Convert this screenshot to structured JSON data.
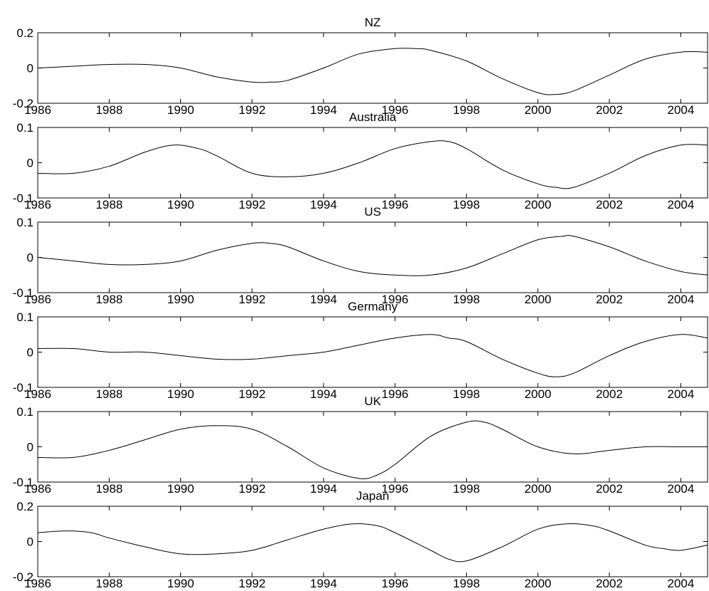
{
  "chart_data": [
    {
      "type": "line",
      "title": "NZ",
      "xlim": [
        1986,
        2004.75
      ],
      "ylim": [
        -0.2,
        0.2
      ],
      "x_ticks": [
        "1986",
        "1988",
        "1990",
        "1992",
        "1994",
        "1996",
        "1998",
        "2000",
        "2002",
        "2004"
      ],
      "y_ticks": [
        "0.2",
        "0",
        "-0.2"
      ],
      "series": [
        {
          "x": [
            1986,
            1987,
            1988,
            1989,
            1990,
            1991,
            1992,
            1992.5,
            1993,
            1994,
            1995,
            1996,
            1996.6,
            1997,
            1998,
            1999,
            2000,
            2000.5,
            2001,
            2002,
            2003,
            2004,
            2004.75
          ],
          "y": [
            0.0,
            0.01,
            0.02,
            0.02,
            0.0,
            -0.05,
            -0.08,
            -0.08,
            -0.07,
            0.0,
            0.08,
            0.11,
            0.11,
            0.1,
            0.04,
            -0.06,
            -0.14,
            -0.15,
            -0.13,
            -0.04,
            0.05,
            0.09,
            0.09
          ]
        }
      ]
    },
    {
      "type": "line",
      "title": "Australia",
      "xlim": [
        1986,
        2004.75
      ],
      "ylim": [
        -0.1,
        0.1
      ],
      "x_ticks": [
        "1986",
        "1988",
        "1990",
        "1992",
        "1994",
        "1996",
        "1998",
        "2000",
        "2002",
        "2004"
      ],
      "y_ticks": [
        "0.1",
        "0",
        "-0.1"
      ],
      "series": [
        {
          "x": [
            1986,
            1987,
            1988,
            1989,
            1989.8,
            1990.5,
            1991,
            1992,
            1993,
            1994,
            1995,
            1996,
            1997,
            1997.5,
            1998,
            1999,
            2000,
            2000.5,
            2001,
            2002,
            2003,
            2004,
            2004.75
          ],
          "y": [
            -0.03,
            -0.03,
            -0.01,
            0.03,
            0.05,
            0.04,
            0.02,
            -0.03,
            -0.04,
            -0.03,
            0.0,
            0.04,
            0.06,
            0.06,
            0.04,
            -0.02,
            -0.06,
            -0.07,
            -0.07,
            -0.03,
            0.02,
            0.05,
            0.05
          ]
        }
      ]
    },
    {
      "type": "line",
      "title": "US",
      "xlim": [
        1986,
        2004.75
      ],
      "ylim": [
        -0.1,
        0.1
      ],
      "x_ticks": [
        "1986",
        "1988",
        "1990",
        "1992",
        "1994",
        "1996",
        "1998",
        "2000",
        "2002",
        "2004"
      ],
      "y_ticks": [
        "0.1",
        "0",
        "-0.1"
      ],
      "series": [
        {
          "x": [
            1986,
            1987,
            1988,
            1989,
            1990,
            1991,
            1992,
            1992.5,
            1993,
            1994,
            1995,
            1996,
            1997,
            1998,
            1999,
            2000,
            2000.7,
            2001,
            2002,
            2003,
            2004,
            2004.75
          ],
          "y": [
            0.0,
            -0.01,
            -0.02,
            -0.02,
            -0.01,
            0.02,
            0.04,
            0.04,
            0.03,
            -0.01,
            -0.04,
            -0.05,
            -0.05,
            -0.03,
            0.01,
            0.05,
            0.06,
            0.06,
            0.03,
            -0.01,
            -0.04,
            -0.05
          ]
        }
      ]
    },
    {
      "type": "line",
      "title": "Germany",
      "xlim": [
        1986,
        2004.75
      ],
      "ylim": [
        -0.1,
        0.1
      ],
      "x_ticks": [
        "1986",
        "1988",
        "1990",
        "1992",
        "1994",
        "1996",
        "1998",
        "2000",
        "2002",
        "2004"
      ],
      "y_ticks": [
        "0.1",
        "0",
        "-0.1"
      ],
      "series": [
        {
          "x": [
            1986,
            1987,
            1988,
            1989,
            1990,
            1991,
            1992,
            1993,
            1994,
            1995,
            1996,
            1997,
            1997.5,
            1998,
            1999,
            2000,
            2000.5,
            2001,
            2002,
            2003,
            2004,
            2004.75
          ],
          "y": [
            0.01,
            0.01,
            0.0,
            0.0,
            -0.01,
            -0.02,
            -0.02,
            -0.01,
            0.0,
            0.02,
            0.04,
            0.05,
            0.04,
            0.03,
            -0.02,
            -0.06,
            -0.07,
            -0.06,
            -0.01,
            0.03,
            0.05,
            0.04
          ]
        }
      ]
    },
    {
      "type": "line",
      "title": "UK",
      "xlim": [
        1986,
        2004.75
      ],
      "ylim": [
        -0.1,
        0.1
      ],
      "x_ticks": [
        "1986",
        "1988",
        "1990",
        "1992",
        "1994",
        "1996",
        "1998",
        "2000",
        "2002",
        "2004"
      ],
      "y_ticks": [
        "0.1",
        "0",
        "-0.1"
      ],
      "series": [
        {
          "x": [
            1986,
            1987,
            1988,
            1989,
            1990,
            1991,
            1992,
            1993,
            1994,
            1995,
            1995.5,
            1996,
            1997,
            1998,
            1998.5,
            1999,
            2000,
            2001,
            2002,
            2003,
            2004,
            2004.75
          ],
          "y": [
            -0.03,
            -0.03,
            -0.01,
            0.02,
            0.05,
            0.06,
            0.05,
            0.0,
            -0.06,
            -0.09,
            -0.08,
            -0.05,
            0.03,
            0.07,
            0.07,
            0.05,
            0.0,
            -0.02,
            -0.01,
            0.0,
            0.0,
            0.0
          ]
        }
      ]
    },
    {
      "type": "line",
      "title": "Japan",
      "xlim": [
        1986,
        2004.75
      ],
      "ylim": [
        -0.2,
        0.2
      ],
      "x_ticks": [
        "1986",
        "1988",
        "1990",
        "1992",
        "1994",
        "1996",
        "1998",
        "2000",
        "2002",
        "2004"
      ],
      "y_ticks": [
        "0.2",
        "0",
        "-0.2"
      ],
      "series": [
        {
          "x": [
            1986,
            1986.8,
            1987.5,
            1988,
            1989,
            1990,
            1991,
            1992,
            1993,
            1994,
            1994.8,
            1995.5,
            1996,
            1997,
            1997.5,
            1998,
            1999,
            2000,
            2000.8,
            2001.5,
            2002,
            2003,
            2003.5,
            2004,
            2004.75
          ],
          "y": [
            0.05,
            0.06,
            0.05,
            0.02,
            -0.03,
            -0.07,
            -0.07,
            -0.05,
            0.01,
            0.07,
            0.1,
            0.09,
            0.05,
            -0.05,
            -0.1,
            -0.11,
            -0.03,
            0.07,
            0.1,
            0.09,
            0.06,
            -0.02,
            -0.04,
            -0.05,
            -0.02
          ]
        }
      ]
    }
  ]
}
